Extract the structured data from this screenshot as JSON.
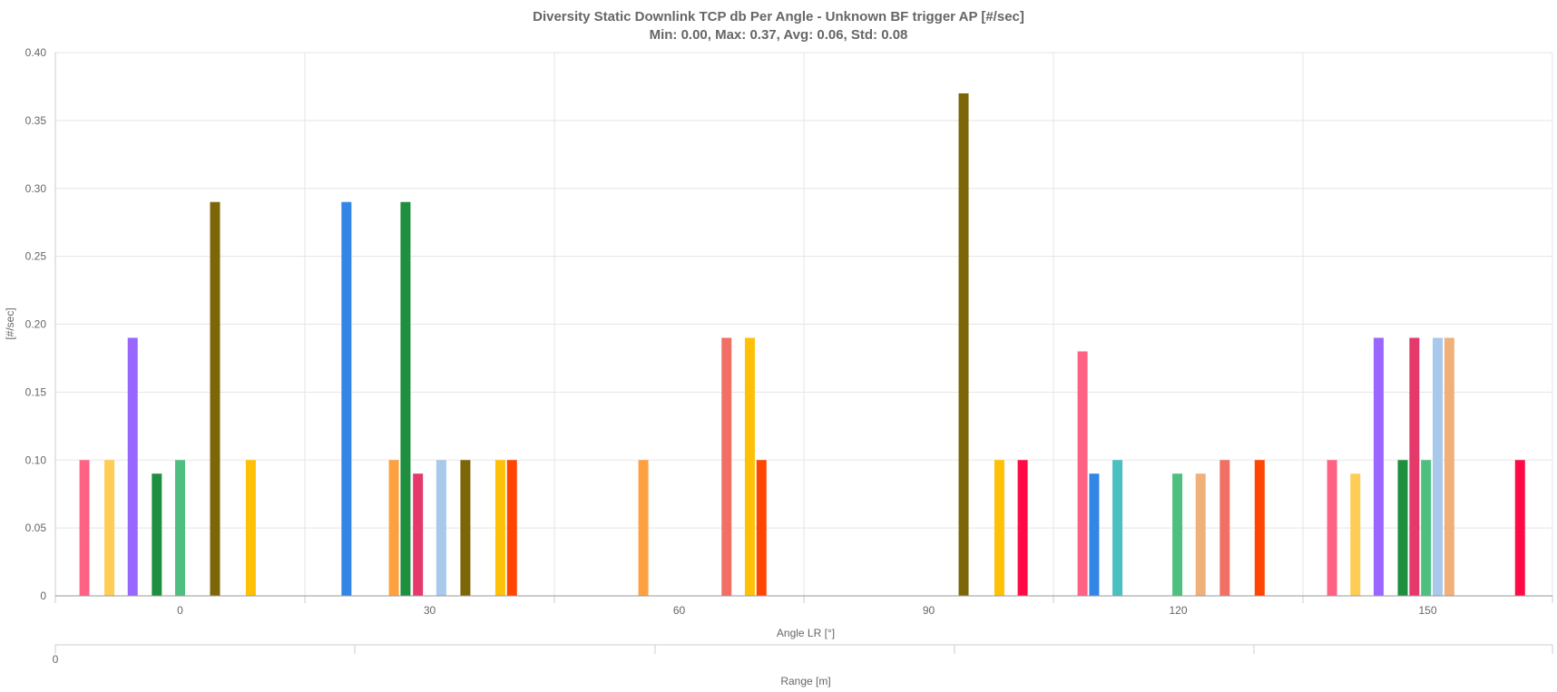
{
  "chart_data": {
    "type": "bar",
    "title": "Diversity Static Downlink TCP db Per Angle - Unknown BF trigger AP [#/sec]",
    "subtitle": "Min: 0.00, Max: 0.37, Avg: 0.06, Std: 0.08",
    "xlabel": "Angle LR [°]",
    "ylabel": "[#/sec]",
    "x2label": "Range [m]",
    "x2_tick_labels": [
      "0"
    ],
    "ylim": [
      0,
      0.4
    ],
    "y_ticks": [
      0,
      0.05,
      0.1,
      0.15,
      0.2,
      0.25,
      0.3,
      0.35,
      0.4
    ],
    "y_tick_labels": [
      "0",
      "0.05",
      "0.10",
      "0.15",
      "0.20",
      "0.25",
      "0.30",
      "0.35",
      "0.40"
    ],
    "xlim": [
      -15,
      165
    ],
    "x_ticks": [
      0,
      30,
      60,
      90,
      120,
      150
    ],
    "x_tick_labels": [
      "0",
      "30",
      "60",
      "90",
      "120",
      "150"
    ],
    "grid": true,
    "legend": "none",
    "bars": [
      {
        "x": -11.5,
        "value": 0.1,
        "color": "#ff6384"
      },
      {
        "x": -8.5,
        "value": 0.1,
        "color": "#ffcd56"
      },
      {
        "x": -5.7,
        "value": 0.19,
        "color": "#9966ff"
      },
      {
        "x": -2.8,
        "value": 0.09,
        "color": "#1e8f3e"
      },
      {
        "x": 0.0,
        "value": 0.1,
        "color": "#4fbf7f"
      },
      {
        "x": 4.2,
        "value": 0.29,
        "color": "#7d6608"
      },
      {
        "x": 8.5,
        "value": 0.1,
        "color": "#ffc107"
      },
      {
        "x": 20.0,
        "value": 0.29,
        "color": "#3385e6"
      },
      {
        "x": 25.7,
        "value": 0.1,
        "color": "#ffa040"
      },
      {
        "x": 27.1,
        "value": 0.29,
        "color": "#1e8f3e"
      },
      {
        "x": 28.6,
        "value": 0.09,
        "color": "#e6396b"
      },
      {
        "x": 31.4,
        "value": 0.1,
        "color": "#a8c8ec"
      },
      {
        "x": 34.3,
        "value": 0.1,
        "color": "#7d6608"
      },
      {
        "x": 38.5,
        "value": 0.1,
        "color": "#ffc107"
      },
      {
        "x": 39.9,
        "value": 0.1,
        "color": "#ff4500"
      },
      {
        "x": 55.7,
        "value": 0.1,
        "color": "#ffa040"
      },
      {
        "x": 65.7,
        "value": 0.19,
        "color": "#f07066"
      },
      {
        "x": 68.5,
        "value": 0.19,
        "color": "#ffc107"
      },
      {
        "x": 69.9,
        "value": 0.1,
        "color": "#ff4500"
      },
      {
        "x": 94.2,
        "value": 0.37,
        "color": "#7d6608"
      },
      {
        "x": 98.5,
        "value": 0.1,
        "color": "#ffc107"
      },
      {
        "x": 101.3,
        "value": 0.1,
        "color": "#ff0a47"
      },
      {
        "x": 108.5,
        "value": 0.18,
        "color": "#ff6384"
      },
      {
        "x": 109.9,
        "value": 0.09,
        "color": "#3385e6"
      },
      {
        "x": 112.7,
        "value": 0.1,
        "color": "#4bc0c0"
      },
      {
        "x": 119.9,
        "value": 0.09,
        "color": "#4fbf7f"
      },
      {
        "x": 122.7,
        "value": 0.09,
        "color": "#f0b07a"
      },
      {
        "x": 125.6,
        "value": 0.1,
        "color": "#f07066"
      },
      {
        "x": 129.8,
        "value": 0.1,
        "color": "#ff4500"
      },
      {
        "x": 138.5,
        "value": 0.1,
        "color": "#ff6384"
      },
      {
        "x": 141.3,
        "value": 0.09,
        "color": "#ffcd56"
      },
      {
        "x": 144.1,
        "value": 0.19,
        "color": "#9966ff"
      },
      {
        "x": 147.0,
        "value": 0.1,
        "color": "#1e8f3e"
      },
      {
        "x": 148.4,
        "value": 0.19,
        "color": "#e6396b"
      },
      {
        "x": 149.8,
        "value": 0.1,
        "color": "#4fbf7f"
      },
      {
        "x": 151.2,
        "value": 0.19,
        "color": "#a8c8ec"
      },
      {
        "x": 152.6,
        "value": 0.19,
        "color": "#f0b07a"
      },
      {
        "x": 161.1,
        "value": 0.1,
        "color": "#ff0a47"
      }
    ]
  }
}
